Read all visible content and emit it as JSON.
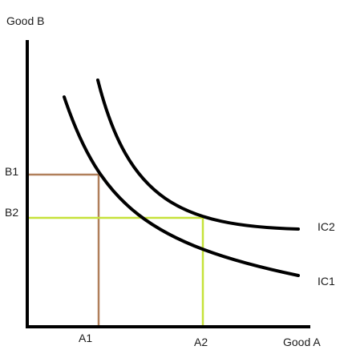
{
  "axes": {
    "y_label": "Good B",
    "x_label": "Good A"
  },
  "points": {
    "a1": "A1",
    "a2": "A2",
    "b1": "B1",
    "b2": "B2"
  },
  "curves": {
    "ic1": "IC1",
    "ic2": "IC2"
  },
  "colors": {
    "axis": "#000000",
    "curve": "#000000",
    "bundle_1_lines": "#b07f5a",
    "bundle_2_lines": "#c6e23a"
  }
}
